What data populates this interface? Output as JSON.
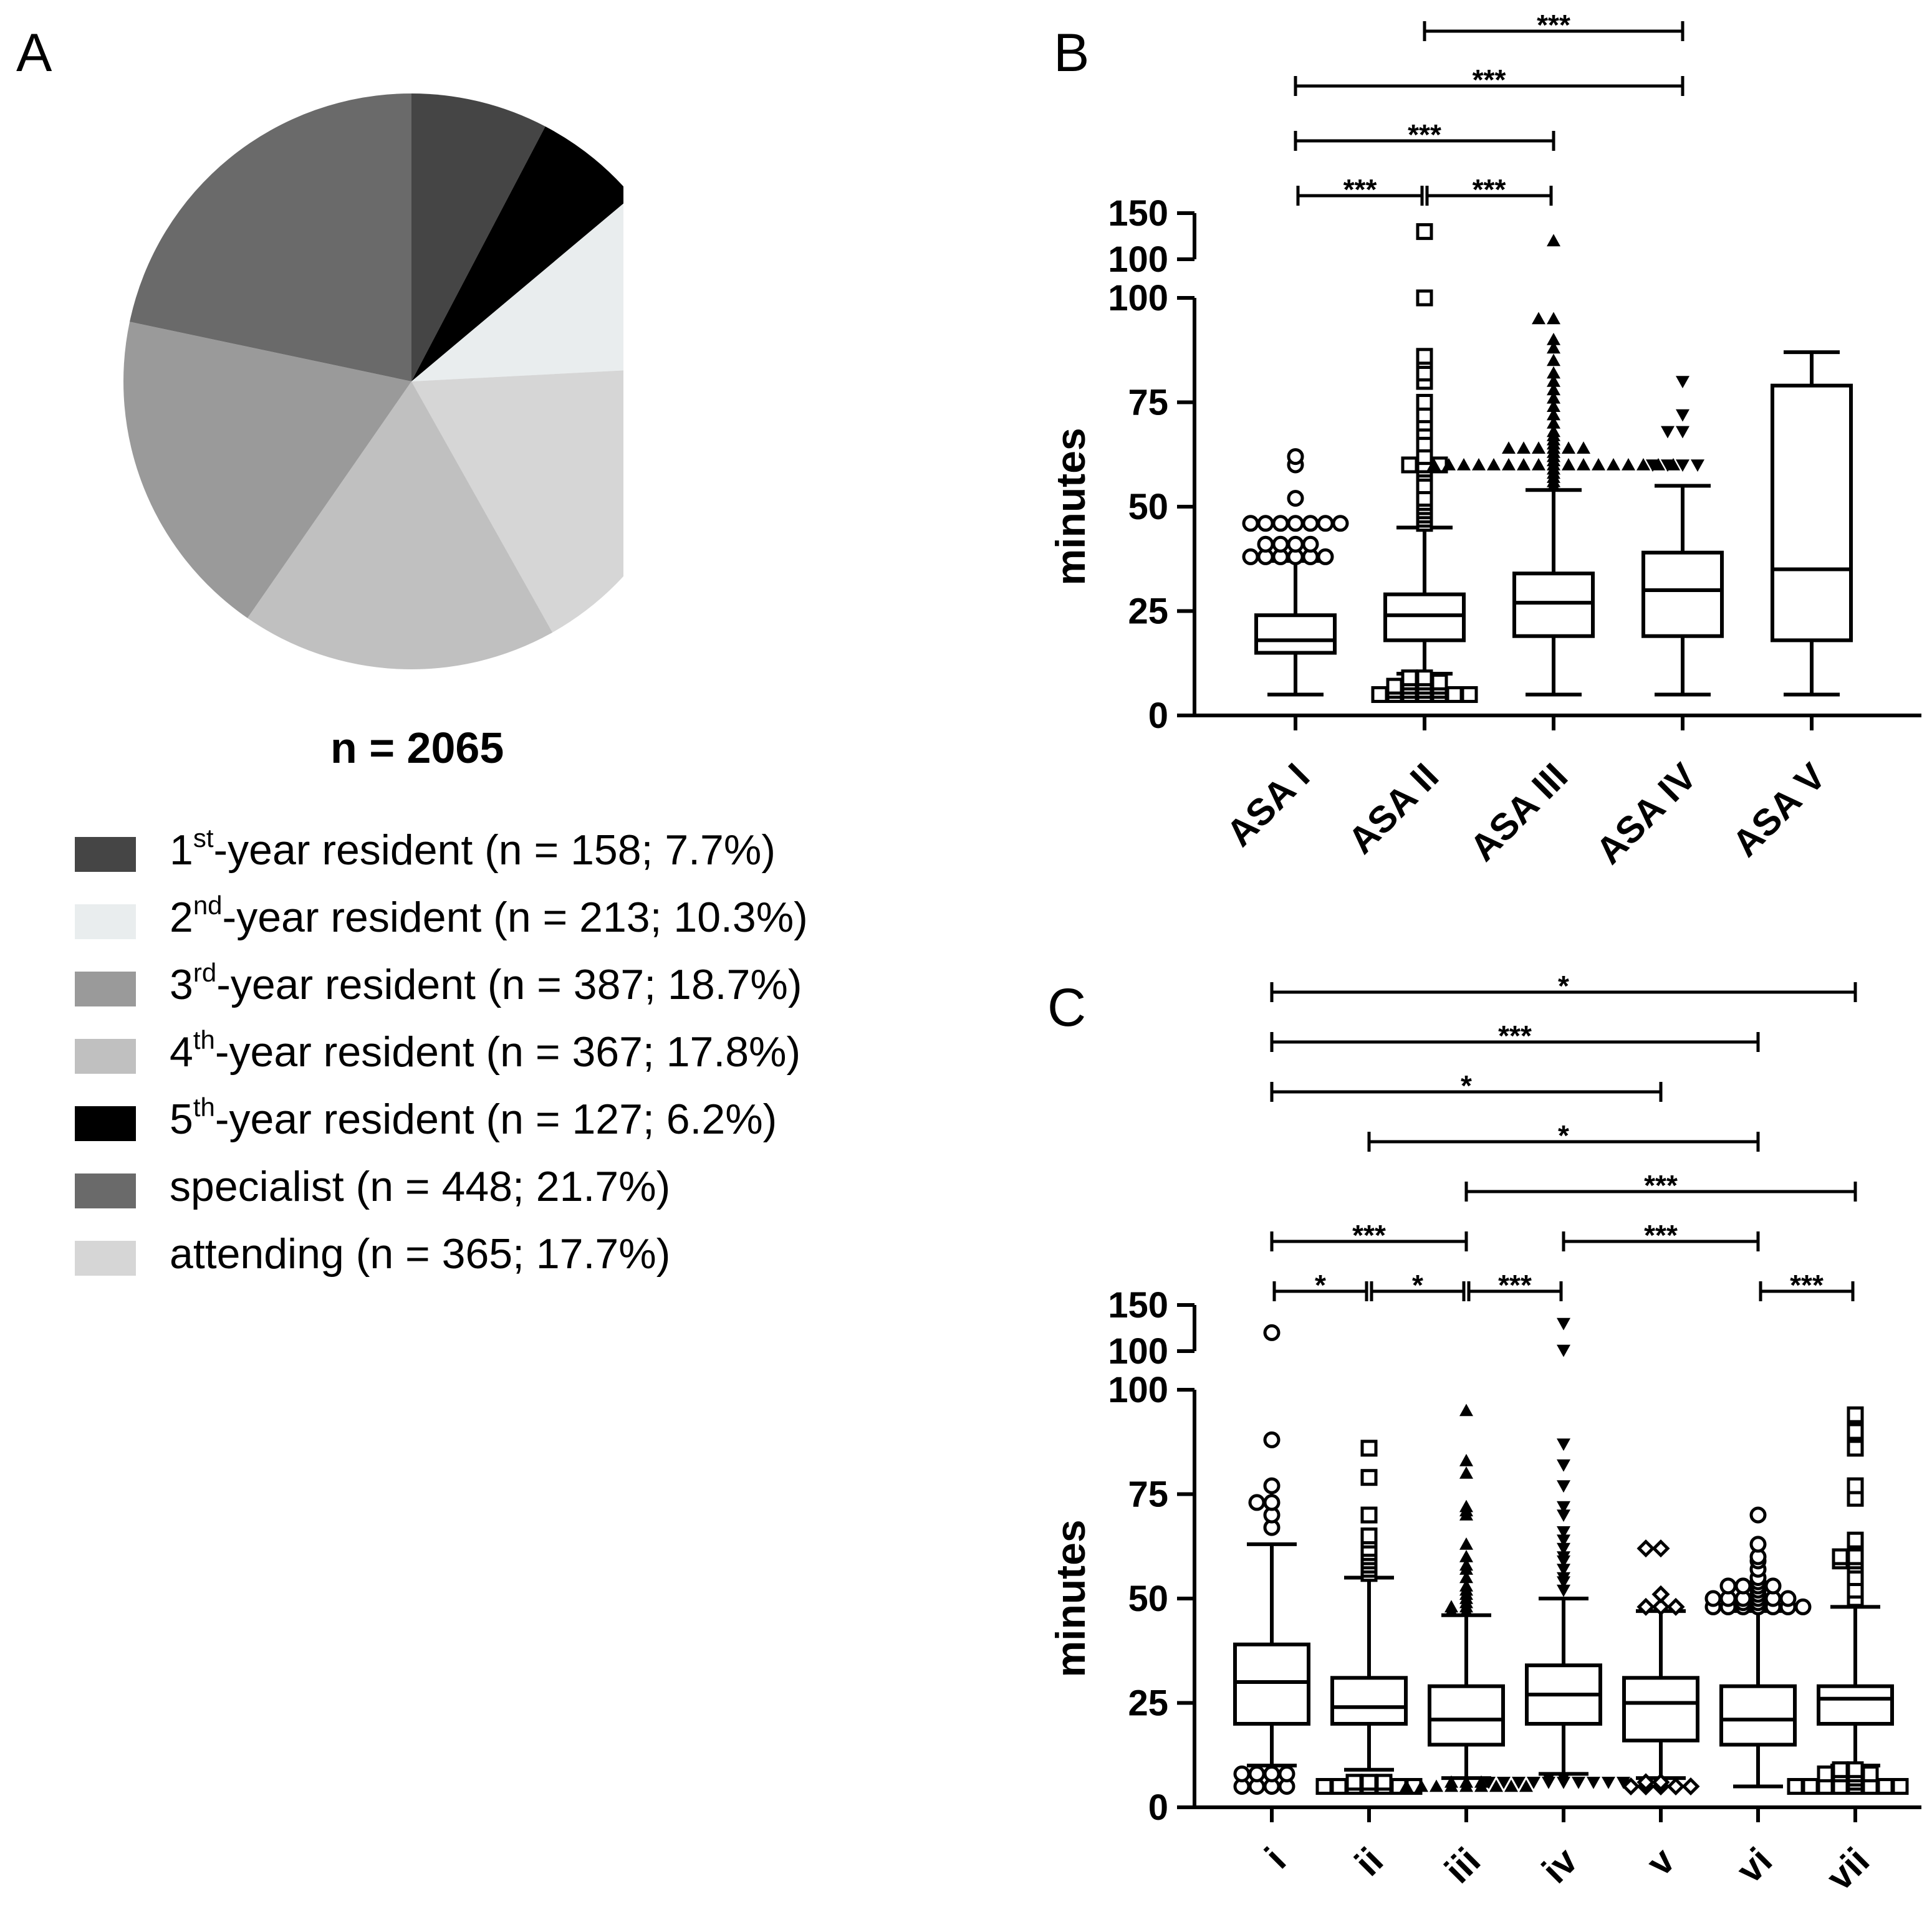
{
  "panels": {
    "a": "A",
    "b": "B",
    "c": "C"
  },
  "chart_data": [
    {
      "type": "pie",
      "panel": "A",
      "subtitle": "n = 2065",
      "slices": [
        {
          "label_base": "1",
          "label_sup": "st",
          "label_rest": "-year resident (n = 158; 7.7%)",
          "value": 7.7,
          "color": "#454545"
        },
        {
          "label_base": "5",
          "label_sup": "th",
          "label_rest": "-year resident (n = 127; 6.2%)",
          "value": 6.2,
          "color": "#000000"
        },
        {
          "label_base": "2",
          "label_sup": "nd",
          "label_rest": "-year resident (n = 213; 10.3%)",
          "value": 10.3,
          "color": "#e9edee"
        },
        {
          "label_base": "attending (n = 365; 17.7%)",
          "label_sup": "",
          "label_rest": "",
          "value": 17.7,
          "color": "#d6d6d6"
        },
        {
          "label_base": "4",
          "label_sup": "th",
          "label_rest": "-year resident (n = 367; 17.8%)",
          "value": 17.8,
          "color": "#c0c0c0"
        },
        {
          "label_base": "3",
          "label_sup": "rd",
          "label_rest": "-year resident (n = 387; 18.7%)",
          "value": 18.7,
          "color": "#9a9a9a"
        },
        {
          "label_base": "specialist (n = 448; 21.7%)",
          "label_sup": "",
          "label_rest": "",
          "value": 21.7,
          "color": "#6a6a6a"
        }
      ],
      "legend_order": [
        0,
        2,
        5,
        4,
        1,
        6,
        3
      ]
    },
    {
      "type": "box",
      "panel": "B",
      "ylabel": "minutes",
      "ylim": [
        0,
        150
      ],
      "axis_break": [
        100,
        100
      ],
      "yticks": [
        0,
        25,
        50,
        75,
        100
      ],
      "yticks_upper": [
        100,
        150
      ],
      "categories": [
        "ASA I",
        "ASA II",
        "ASA III",
        "ASA IV",
        "ASA V"
      ],
      "boxes": [
        {
          "whisker_low": 5,
          "q1": 15,
          "median": 18,
          "q3": 24,
          "whisker_high": 37,
          "marker": "circle",
          "outliers": [
            38,
            38,
            38,
            38,
            38,
            38,
            41,
            41,
            41,
            41,
            46,
            46,
            46,
            46,
            46,
            46,
            46,
            52,
            60,
            62
          ]
        },
        {
          "whisker_low": 10,
          "q1": 18,
          "median": 24,
          "q3": 29,
          "whisker_high": 45,
          "marker": "square",
          "outliers": [
            5,
            5,
            5,
            5,
            5,
            5,
            5,
            6,
            6,
            6,
            6,
            7,
            7,
            7,
            7,
            8,
            8,
            8,
            9,
            9,
            46,
            47,
            48,
            49,
            50,
            51,
            52,
            55,
            58,
            59,
            60,
            60,
            60,
            62,
            65,
            68,
            70,
            72,
            75,
            80,
            82,
            85,
            86,
            100,
            130
          ]
        },
        {
          "whisker_low": 5,
          "q1": 19,
          "median": 27,
          "q3": 34,
          "whisker_high": 54,
          "marker": "triangle",
          "outliers": [
            55,
            56,
            57,
            58,
            59,
            60,
            60,
            60,
            60,
            60,
            60,
            60,
            60,
            60,
            60,
            60,
            60,
            60,
            60,
            60,
            60,
            60,
            61,
            62,
            63,
            64,
            64,
            64,
            64,
            64,
            64,
            65,
            66,
            67,
            68,
            70,
            72,
            74,
            76,
            78,
            80,
            82,
            85,
            88,
            90,
            95,
            95,
            120
          ]
        },
        {
          "whisker_low": 5,
          "q1": 19,
          "median": 30,
          "q3": 39,
          "whisker_high": 55,
          "marker": "triangle-down",
          "outliers": [
            60,
            60,
            60,
            60,
            68,
            68,
            72,
            80
          ]
        },
        {
          "whisker_low": 5,
          "q1": 18,
          "median": 35,
          "q3": 79,
          "whisker_high": 87,
          "marker": "none",
          "outliers": []
        }
      ],
      "significance": [
        {
          "from": 0,
          "to": 1,
          "label": "***",
          "level": 0
        },
        {
          "from": 1,
          "to": 2,
          "label": "***",
          "level": 0
        },
        {
          "from": 0,
          "to": 2,
          "label": "***",
          "level": 1
        },
        {
          "from": 0,
          "to": 3,
          "label": "***",
          "level": 2
        },
        {
          "from": 1,
          "to": 3,
          "label": "***",
          "level": 3
        }
      ]
    },
    {
      "type": "box",
      "panel": "C",
      "ylabel": "minutes",
      "ylim": [
        0,
        150
      ],
      "axis_break": [
        100,
        100
      ],
      "yticks": [
        0,
        25,
        50,
        75,
        100
      ],
      "yticks_upper": [
        100,
        150
      ],
      "categories": [
        "i",
        "ii",
        "iii",
        "iv",
        "v",
        "vi",
        "vii"
      ],
      "boxes": [
        {
          "whisker_low": 10,
          "q1": 20,
          "median": 30,
          "q3": 39,
          "whisker_high": 63,
          "marker": "circle",
          "outliers": [
            5,
            5,
            5,
            5,
            8,
            8,
            8,
            8,
            67,
            70,
            73,
            73,
            77,
            88,
            120
          ]
        },
        {
          "whisker_low": 9,
          "q1": 20,
          "median": 24,
          "q3": 31,
          "whisker_high": 55,
          "marker": "square",
          "outliers": [
            5,
            5,
            5,
            5,
            5,
            5,
            5,
            6,
            6,
            6,
            56,
            57,
            58,
            59,
            60,
            61,
            62,
            64,
            65,
            70,
            79,
            86
          ]
        },
        {
          "whisker_low": 7,
          "q1": 15,
          "median": 21,
          "q3": 29,
          "whisker_high": 46,
          "marker": "triangle",
          "outliers": [
            5,
            5,
            5,
            5,
            5,
            5,
            5,
            5,
            5,
            6,
            6,
            6,
            47,
            47,
            48,
            48,
            49,
            50,
            51,
            52,
            53,
            55,
            57,
            58,
            60,
            63,
            70,
            71,
            72,
            80,
            83,
            95
          ]
        },
        {
          "whisker_low": 8,
          "q1": 20,
          "median": 27,
          "q3": 34,
          "whisker_high": 50,
          "marker": "triangle-down",
          "outliers": [
            6,
            6,
            6,
            6,
            6,
            6,
            6,
            6,
            6,
            6,
            7,
            7,
            52,
            54,
            55,
            57,
            59,
            60,
            62,
            64,
            66,
            70,
            72,
            77,
            82,
            87,
            101,
            130
          ]
        },
        {
          "whisker_low": 7,
          "q1": 16,
          "median": 25,
          "q3": 31,
          "whisker_high": 47,
          "marker": "diamond",
          "outliers": [
            5,
            5,
            5,
            5,
            5,
            6,
            6,
            48,
            48,
            48,
            51,
            62,
            62
          ]
        },
        {
          "whisker_low": 5,
          "q1": 15,
          "median": 21,
          "q3": 29,
          "whisker_high": 47,
          "marker": "circle",
          "outliers": [
            48,
            48,
            48,
            48,
            48,
            48,
            48,
            49,
            49,
            50,
            50,
            50,
            50,
            50,
            50,
            51,
            52,
            53,
            53,
            53,
            53,
            54,
            55,
            57,
            59,
            60,
            63,
            70
          ]
        },
        {
          "whisker_low": 10,
          "q1": 20,
          "median": 26,
          "q3": 29,
          "whisker_high": 48,
          "marker": "square",
          "outliers": [
            5,
            5,
            5,
            5,
            5,
            5,
            5,
            5,
            6,
            7,
            8,
            8,
            8,
            8,
            9,
            9,
            50,
            52,
            55,
            58,
            59,
            59,
            60,
            60,
            64,
            74,
            77,
            86,
            90,
            94
          ]
        }
      ],
      "significance": [
        {
          "from": 0,
          "to": 1,
          "label": "*",
          "level": 0
        },
        {
          "from": 1,
          "to": 2,
          "label": "*",
          "level": 0
        },
        {
          "from": 2,
          "to": 3,
          "label": "***",
          "level": 0
        },
        {
          "from": 5,
          "to": 6,
          "label": "***",
          "level": 0
        },
        {
          "from": 0,
          "to": 2,
          "label": "***",
          "level": 1
        },
        {
          "from": 3,
          "to": 5,
          "label": "***",
          "level": 1
        },
        {
          "from": 2,
          "to": 6,
          "label": "***",
          "level": 2
        },
        {
          "from": 1,
          "to": 5,
          "label": "*",
          "level": 3
        },
        {
          "from": 0,
          "to": 4,
          "label": "*",
          "level": 4
        },
        {
          "from": 0,
          "to": 5,
          "label": "***",
          "level": 5
        },
        {
          "from": 0,
          "to": 6,
          "label": "*",
          "level": 6
        }
      ]
    }
  ]
}
